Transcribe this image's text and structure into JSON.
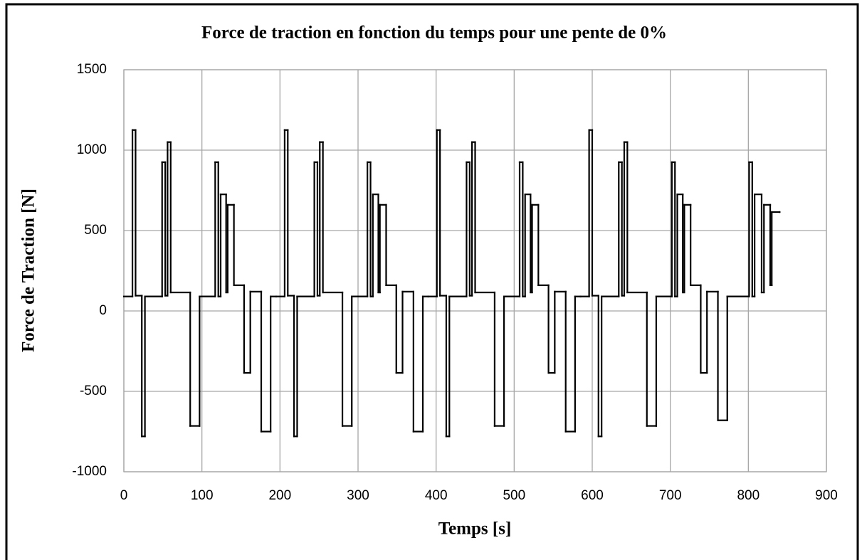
{
  "chart_data": {
    "type": "line",
    "step": "post",
    "title": "Force de traction en fonction du temps pour une pente de 0%",
    "xlabel": "Temps [s]",
    "ylabel": "Force de Traction [N]",
    "xlim": [
      0,
      900
    ],
    "xticks": [
      0,
      100,
      200,
      300,
      400,
      500,
      600,
      700,
      800,
      900
    ],
    "ylim": [
      -1000,
      1500
    ],
    "yticks": [
      -1000,
      -500,
      0,
      500,
      1000,
      1500
    ],
    "grid": true,
    "series": [
      {
        "color": "#000000",
        "x": [
          0,
          11,
          15,
          23,
          27,
          49,
          53,
          56,
          60,
          85,
          97,
          117,
          121,
          124,
          131,
          133,
          141,
          154,
          162,
          176,
          188,
          195,
          206,
          210,
          218,
          222,
          244,
          248,
          251,
          255,
          280,
          292,
          312,
          316,
          319,
          326,
          328,
          336,
          349,
          357,
          371,
          383,
          390,
          401,
          405,
          413,
          417,
          439,
          443,
          446,
          450,
          475,
          487,
          507,
          511,
          514,
          521,
          523,
          531,
          544,
          552,
          566,
          578,
          585,
          596,
          600,
          608,
          612,
          634,
          638,
          641,
          645,
          670,
          682,
          702,
          706,
          709,
          716,
          718,
          726,
          739,
          747,
          761,
          773,
          801,
          805,
          808,
          817,
          820,
          828,
          830,
          840
        ],
        "values": [
          90,
          1125,
          95,
          -780,
          90,
          925,
          95,
          1050,
          115,
          -715,
          90,
          925,
          90,
          725,
          115,
          660,
          160,
          -385,
          120,
          -750,
          90,
          90,
          1125,
          95,
          -780,
          90,
          925,
          95,
          1050,
          115,
          -715,
          90,
          925,
          90,
          725,
          115,
          660,
          160,
          -385,
          120,
          -750,
          90,
          90,
          1125,
          95,
          -780,
          90,
          925,
          95,
          1050,
          115,
          -715,
          90,
          925,
          90,
          725,
          115,
          660,
          160,
          -385,
          120,
          -750,
          90,
          90,
          1125,
          95,
          -780,
          90,
          925,
          95,
          1050,
          115,
          -715,
          90,
          925,
          90,
          725,
          115,
          660,
          160,
          -385,
          120,
          -680,
          90,
          925,
          90,
          725,
          115,
          660,
          160,
          615,
          615
        ]
      }
    ]
  }
}
